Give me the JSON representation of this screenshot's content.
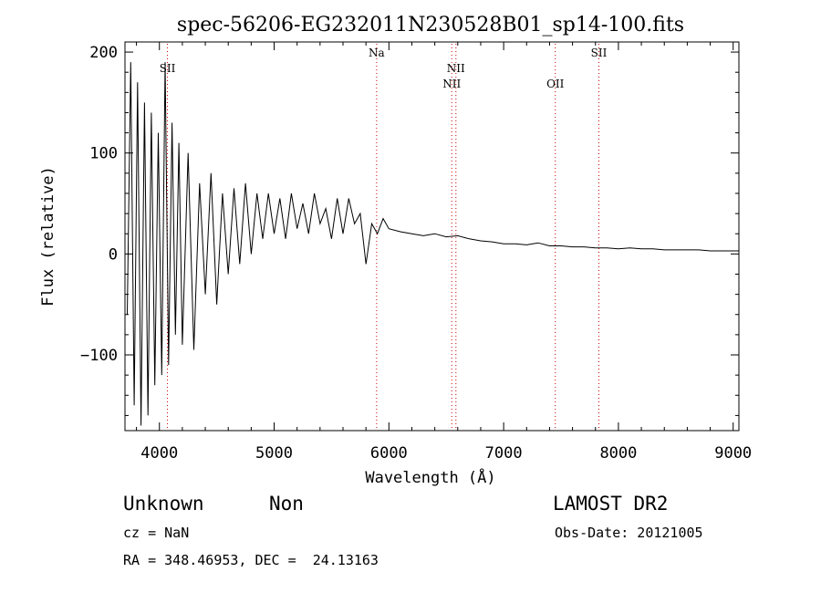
{
  "chart_data": {
    "type": "line",
    "title": "spec-56206-EG232011N230528B01_sp14-100.fits",
    "xlabel": "Wavelength (Å)",
    "ylabel": "Flux (relative)",
    "xlim": [
      3700,
      9050
    ],
    "ylim": [
      -175,
      210
    ],
    "xticks": [
      4000,
      5000,
      6000,
      7000,
      8000,
      9000
    ],
    "yticks": [
      -100,
      0,
      100,
      200
    ],
    "xtick_labels": [
      "4000",
      "5000",
      "6000",
      "7000",
      "8000",
      "9000"
    ],
    "ytick_labels": [
      "−100",
      "0",
      "100",
      "200"
    ],
    "grid": false,
    "line_color": "#000000",
    "marker_color": "#cc0000",
    "lines": [
      {
        "label": "SII",
        "x": 4070,
        "label_row": 1
      },
      {
        "label": "Na",
        "x": 5893,
        "label_row": 0
      },
      {
        "label": "NII",
        "x": 6548,
        "label_row": 2
      },
      {
        "label": "NII",
        "x": 6584,
        "label_row": 1
      },
      {
        "label": "OII",
        "x": 7450,
        "label_row": 2
      },
      {
        "label": "SII",
        "x": 7830,
        "label_row": 0
      }
    ],
    "series": [
      {
        "x": [
          3720,
          3750,
          3780,
          3810,
          3840,
          3870,
          3900,
          3930,
          3960,
          3990,
          4020,
          4050,
          4080,
          4110,
          4140,
          4170,
          4200,
          4250,
          4300,
          4350,
          4400,
          4450,
          4500,
          4550,
          4600,
          4650,
          4700,
          4750,
          4800,
          4850,
          4900,
          4950,
          5000,
          5050,
          5100,
          5150,
          5200,
          5250,
          5300,
          5350,
          5400,
          5450,
          5500,
          5550,
          5600,
          5650,
          5700,
          5750,
          5800,
          5850,
          5900,
          5950,
          6000,
          6100,
          6200,
          6300,
          6400,
          6500,
          6600,
          6700,
          6800,
          6900,
          7000,
          7100,
          7200,
          7300,
          7400,
          7500,
          7600,
          7700,
          7800,
          7900,
          8000,
          8100,
          8200,
          8300,
          8400,
          8500,
          8600,
          8700,
          8800,
          8900,
          9000,
          9050
        ],
        "y": [
          -60,
          190,
          -150,
          170,
          -170,
          150,
          -160,
          140,
          -130,
          120,
          -120,
          190,
          -110,
          130,
          -80,
          110,
          -90,
          100,
          -95,
          70,
          -40,
          80,
          -50,
          60,
          -20,
          65,
          -10,
          70,
          0,
          60,
          15,
          60,
          20,
          55,
          15,
          60,
          25,
          50,
          20,
          60,
          30,
          45,
          15,
          55,
          20,
          55,
          30,
          40,
          -10,
          30,
          20,
          35,
          25,
          22,
          20,
          18,
          20,
          17,
          18,
          15,
          13,
          12,
          10,
          10,
          9,
          11,
          8,
          8,
          7,
          7,
          6,
          6,
          5,
          6,
          5,
          5,
          4,
          4,
          4,
          4,
          3,
          3,
          3,
          3
        ]
      }
    ]
  },
  "footer": {
    "class_label": "Unknown",
    "subclass_label": "Non",
    "cz_text": "cz = NaN",
    "coords_text": "RA = 348.46953, DEC =  24.13163",
    "survey": "LAMOST DR2",
    "obs_date": "Obs-Date: 20121005"
  }
}
